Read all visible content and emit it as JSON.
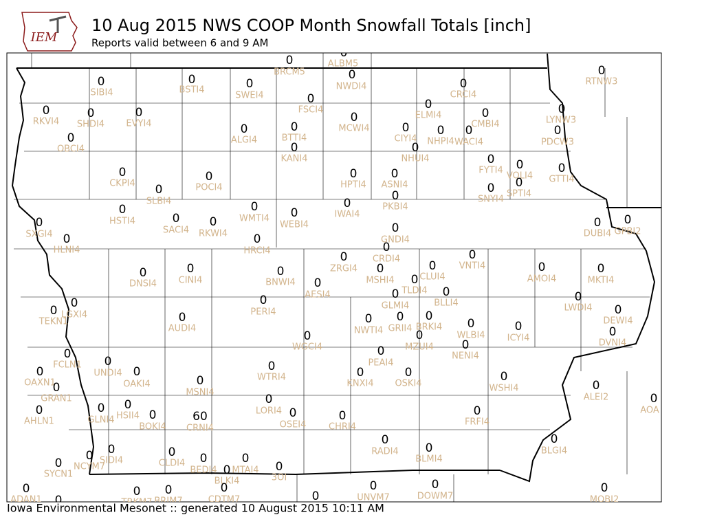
{
  "header": {
    "logo": "IEM",
    "title": "10 Aug 2015 NWS COOP Month Snowfall Totals [inch]",
    "subtitle": "Reports valid between 6 and 9 AM"
  },
  "footer": "Iowa Environmental Mesonet :: generated 10 August 2015 10:11 AM",
  "stations": [
    {
      "id": "BRCM5",
      "value": 0
    },
    {
      "id": "ALBM5",
      "value": 0
    },
    {
      "id": "NWDI4",
      "value": 0
    },
    {
      "id": "SIBI4",
      "value": 0
    },
    {
      "id": "BSTI4",
      "value": 0
    },
    {
      "id": "SWEI4",
      "value": 0
    },
    {
      "id": "FSCI4",
      "value": 0
    },
    {
      "id": "CRCI4",
      "value": 0
    },
    {
      "id": "RTNW3",
      "value": 0
    },
    {
      "id": "RKVI4",
      "value": 0
    },
    {
      "id": "SHDI4",
      "value": 0
    },
    {
      "id": "EVYI4",
      "value": 0
    },
    {
      "id": "MCWI4",
      "value": 0
    },
    {
      "id": "ELMI4",
      "value": 0
    },
    {
      "id": "CMBI4",
      "value": 0
    },
    {
      "id": "LYNW3",
      "value": 0
    },
    {
      "id": "ALGI4",
      "value": 0
    },
    {
      "id": "BTTI4",
      "value": 0
    },
    {
      "id": "CIYI4",
      "value": 0
    },
    {
      "id": "NHPI4",
      "value": 0
    },
    {
      "id": "WACI4",
      "value": 0
    },
    {
      "id": "PDCW3",
      "value": 0
    },
    {
      "id": "OBCI4",
      "value": 0
    },
    {
      "id": "KANI4",
      "value": 0
    },
    {
      "id": "NHUI4",
      "value": 0
    },
    {
      "id": "FYTI4",
      "value": 0
    },
    {
      "id": "VOLI4",
      "value": 0
    },
    {
      "id": "GTTI4",
      "value": 0
    },
    {
      "id": "CKPI4",
      "value": 0
    },
    {
      "id": "POCI4",
      "value": 0
    },
    {
      "id": "HPTI4",
      "value": 0
    },
    {
      "id": "ASNI4",
      "value": 0
    },
    {
      "id": "SPTI4",
      "value": 0
    },
    {
      "id": "SNYI4",
      "value": 0
    },
    {
      "id": "SLBI4",
      "value": 0
    },
    {
      "id": "PKBI4",
      "value": 0
    },
    {
      "id": "IWAI4",
      "value": 0
    },
    {
      "id": "WMTI4",
      "value": 0
    },
    {
      "id": "HSTI4",
      "value": 0
    },
    {
      "id": "WEBI4",
      "value": 0
    },
    {
      "id": "SACI4",
      "value": 0
    },
    {
      "id": "RKWI4",
      "value": 0
    },
    {
      "id": "SXGI4",
      "value": 0
    },
    {
      "id": "DUBI4",
      "value": 0
    },
    {
      "id": "GPBI2",
      "value": 0
    },
    {
      "id": "HLNI4",
      "value": 0
    },
    {
      "id": "HRCI4",
      "value": 0
    },
    {
      "id": "GNDI4",
      "value": 0
    },
    {
      "id": "CRDI4",
      "value": 0
    },
    {
      "id": "VNTI4",
      "value": 0
    },
    {
      "id": "ZRGI4",
      "value": 0
    },
    {
      "id": "AMOI4",
      "value": 0
    },
    {
      "id": "CLUI4",
      "value": 0
    },
    {
      "id": "MKTI4",
      "value": 0
    },
    {
      "id": "DNSI4",
      "value": 0
    },
    {
      "id": "CINI4",
      "value": 0
    },
    {
      "id": "BNWI4",
      "value": 0
    },
    {
      "id": "MSHI4",
      "value": 0
    },
    {
      "id": "TLDI4",
      "value": 0
    },
    {
      "id": "AESI4",
      "value": 0
    },
    {
      "id": "BLLI4",
      "value": 0
    },
    {
      "id": "GLMI4",
      "value": 0
    },
    {
      "id": "LWDI4",
      "value": 0
    },
    {
      "id": "PERI4",
      "value": 0
    },
    {
      "id": "TEKN1",
      "value": 0
    },
    {
      "id": "LGXI4",
      "value": 0
    },
    {
      "id": "DEWI4",
      "value": 0
    },
    {
      "id": "AUDI4",
      "value": 0
    },
    {
      "id": "NWTI4",
      "value": 0
    },
    {
      "id": "GRII4",
      "value": 0
    },
    {
      "id": "BRKI4",
      "value": 0
    },
    {
      "id": "WLBI4",
      "value": 0
    },
    {
      "id": "ICYI4",
      "value": 0
    },
    {
      "id": "DVNI4",
      "value": 0
    },
    {
      "id": "WGCI4",
      "value": 0
    },
    {
      "id": "MZUI4",
      "value": 0
    },
    {
      "id": "NENI4",
      "value": 0
    },
    {
      "id": "FCLN1",
      "value": 0
    },
    {
      "id": "UNDI4",
      "value": 0
    },
    {
      "id": "PEAI4",
      "value": 0
    },
    {
      "id": "WTRI4",
      "value": 0
    },
    {
      "id": "OAKI4",
      "value": 0
    },
    {
      "id": "KNXI4",
      "value": 0
    },
    {
      "id": "OSKI4",
      "value": 0
    },
    {
      "id": "OAXN1",
      "value": 0
    },
    {
      "id": "WSHI4",
      "value": 0
    },
    {
      "id": "MSNI4",
      "value": 0
    },
    {
      "id": "GRAN1",
      "value": 0
    },
    {
      "id": "ALEI2",
      "value": 0
    },
    {
      "id": "AOA",
      "value": 0
    },
    {
      "id": "LORI4",
      "value": 0
    },
    {
      "id": "HSII4",
      "value": 0
    },
    {
      "id": "GLNI4",
      "value": 0
    },
    {
      "id": "AHLN1",
      "value": 0
    },
    {
      "id": "BOKI4",
      "value": 0
    },
    {
      "id": "CRNI4",
      "value": 60
    },
    {
      "id": "OSEI4",
      "value": 0
    },
    {
      "id": "CHRI4",
      "value": 0
    },
    {
      "id": "FRFI4",
      "value": 0
    },
    {
      "id": "RADI4",
      "value": 0
    },
    {
      "id": "BLMI4",
      "value": 0
    },
    {
      "id": "BLGI4",
      "value": 0
    },
    {
      "id": "SIDI4",
      "value": 0
    },
    {
      "id": "NCYM7",
      "value": 0
    },
    {
      "id": "SYCN1",
      "value": 0
    },
    {
      "id": "CLDI4",
      "value": 0
    },
    {
      "id": "BEDI4",
      "value": 0
    },
    {
      "id": "MTAI4",
      "value": 0
    },
    {
      "id": "BLKI4",
      "value": 0
    },
    {
      "id": "3OI",
      "value": 0
    },
    {
      "id": "ADAN1",
      "value": 0
    },
    {
      "id": "TRKM7",
      "value": 0
    },
    {
      "id": "BRIM7",
      "value": 0
    },
    {
      "id": "CDTM7",
      "value": 0
    },
    {
      "id": "UNVM7",
      "value": 0
    },
    {
      "id": "DOWM7",
      "value": 0
    },
    {
      "id": "MOBI2",
      "value": 0
    },
    {
      "id": null,
      "value": 0
    },
    {
      "id": null,
      "value": 0
    }
  ]
}
